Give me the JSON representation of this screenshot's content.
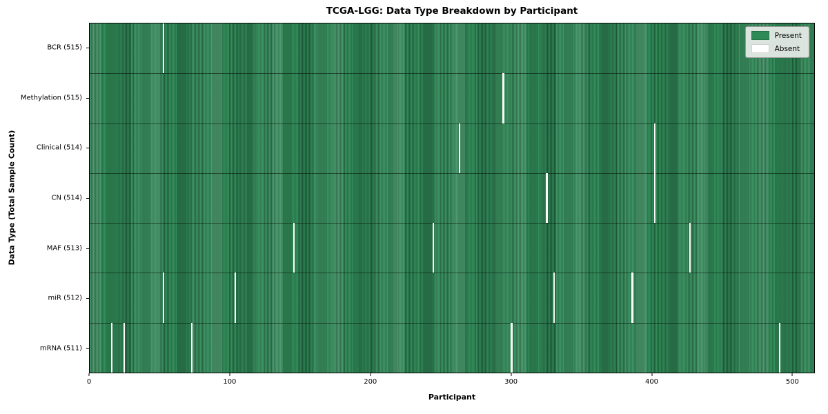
{
  "title": "TCGA-LGG: Data Type Breakdown by Participant",
  "axes": {
    "xlabel": "Participant",
    "ylabel": "Data Type (Total Sample Count)"
  },
  "legend": {
    "items": [
      {
        "label": "Present",
        "color": "#2e8b57"
      },
      {
        "label": "Absent",
        "color": "#ffffff"
      }
    ]
  },
  "colors": {
    "present": "#2e8b57",
    "absent": "#fbfbf9",
    "row_separator": "rgba(5,20,8,0.55)"
  },
  "chart_data": {
    "type": "heatmap",
    "title": "TCGA-LGG: Data Type Breakdown by Participant",
    "xlabel": "Participant",
    "ylabel": "Data Type (Total Sample Count)",
    "legend": [
      "Present",
      "Absent"
    ],
    "legend_position": "upper right",
    "total_participants": 516,
    "xlim": [
      0,
      516
    ],
    "x_ticks": [
      0,
      100,
      200,
      300,
      400,
      500
    ],
    "rows": [
      {
        "label": "BCR (515)",
        "data_type": "BCR",
        "present_count": 515,
        "absent_participants": [
          52
        ]
      },
      {
        "label": "Methylation (515)",
        "data_type": "Methylation",
        "present_count": 515,
        "absent_participants": [
          294
        ]
      },
      {
        "label": "Clinical (514)",
        "data_type": "Clinical",
        "present_count": 514,
        "absent_participants": [
          263,
          402
        ]
      },
      {
        "label": "CN (514)",
        "data_type": "CN",
        "present_count": 514,
        "absent_participants": [
          325,
          402
        ]
      },
      {
        "label": "MAF (513)",
        "data_type": "MAF",
        "present_count": 513,
        "absent_participants": [
          145,
          244,
          427
        ]
      },
      {
        "label": "miR (512)",
        "data_type": "miR",
        "present_count": 512,
        "absent_participants": [
          52,
          103,
          330,
          386
        ]
      },
      {
        "label": "mRNA (511)",
        "data_type": "mRNA",
        "present_count": 511,
        "absent_participants": [
          15,
          24,
          72,
          300,
          491
        ]
      }
    ]
  }
}
